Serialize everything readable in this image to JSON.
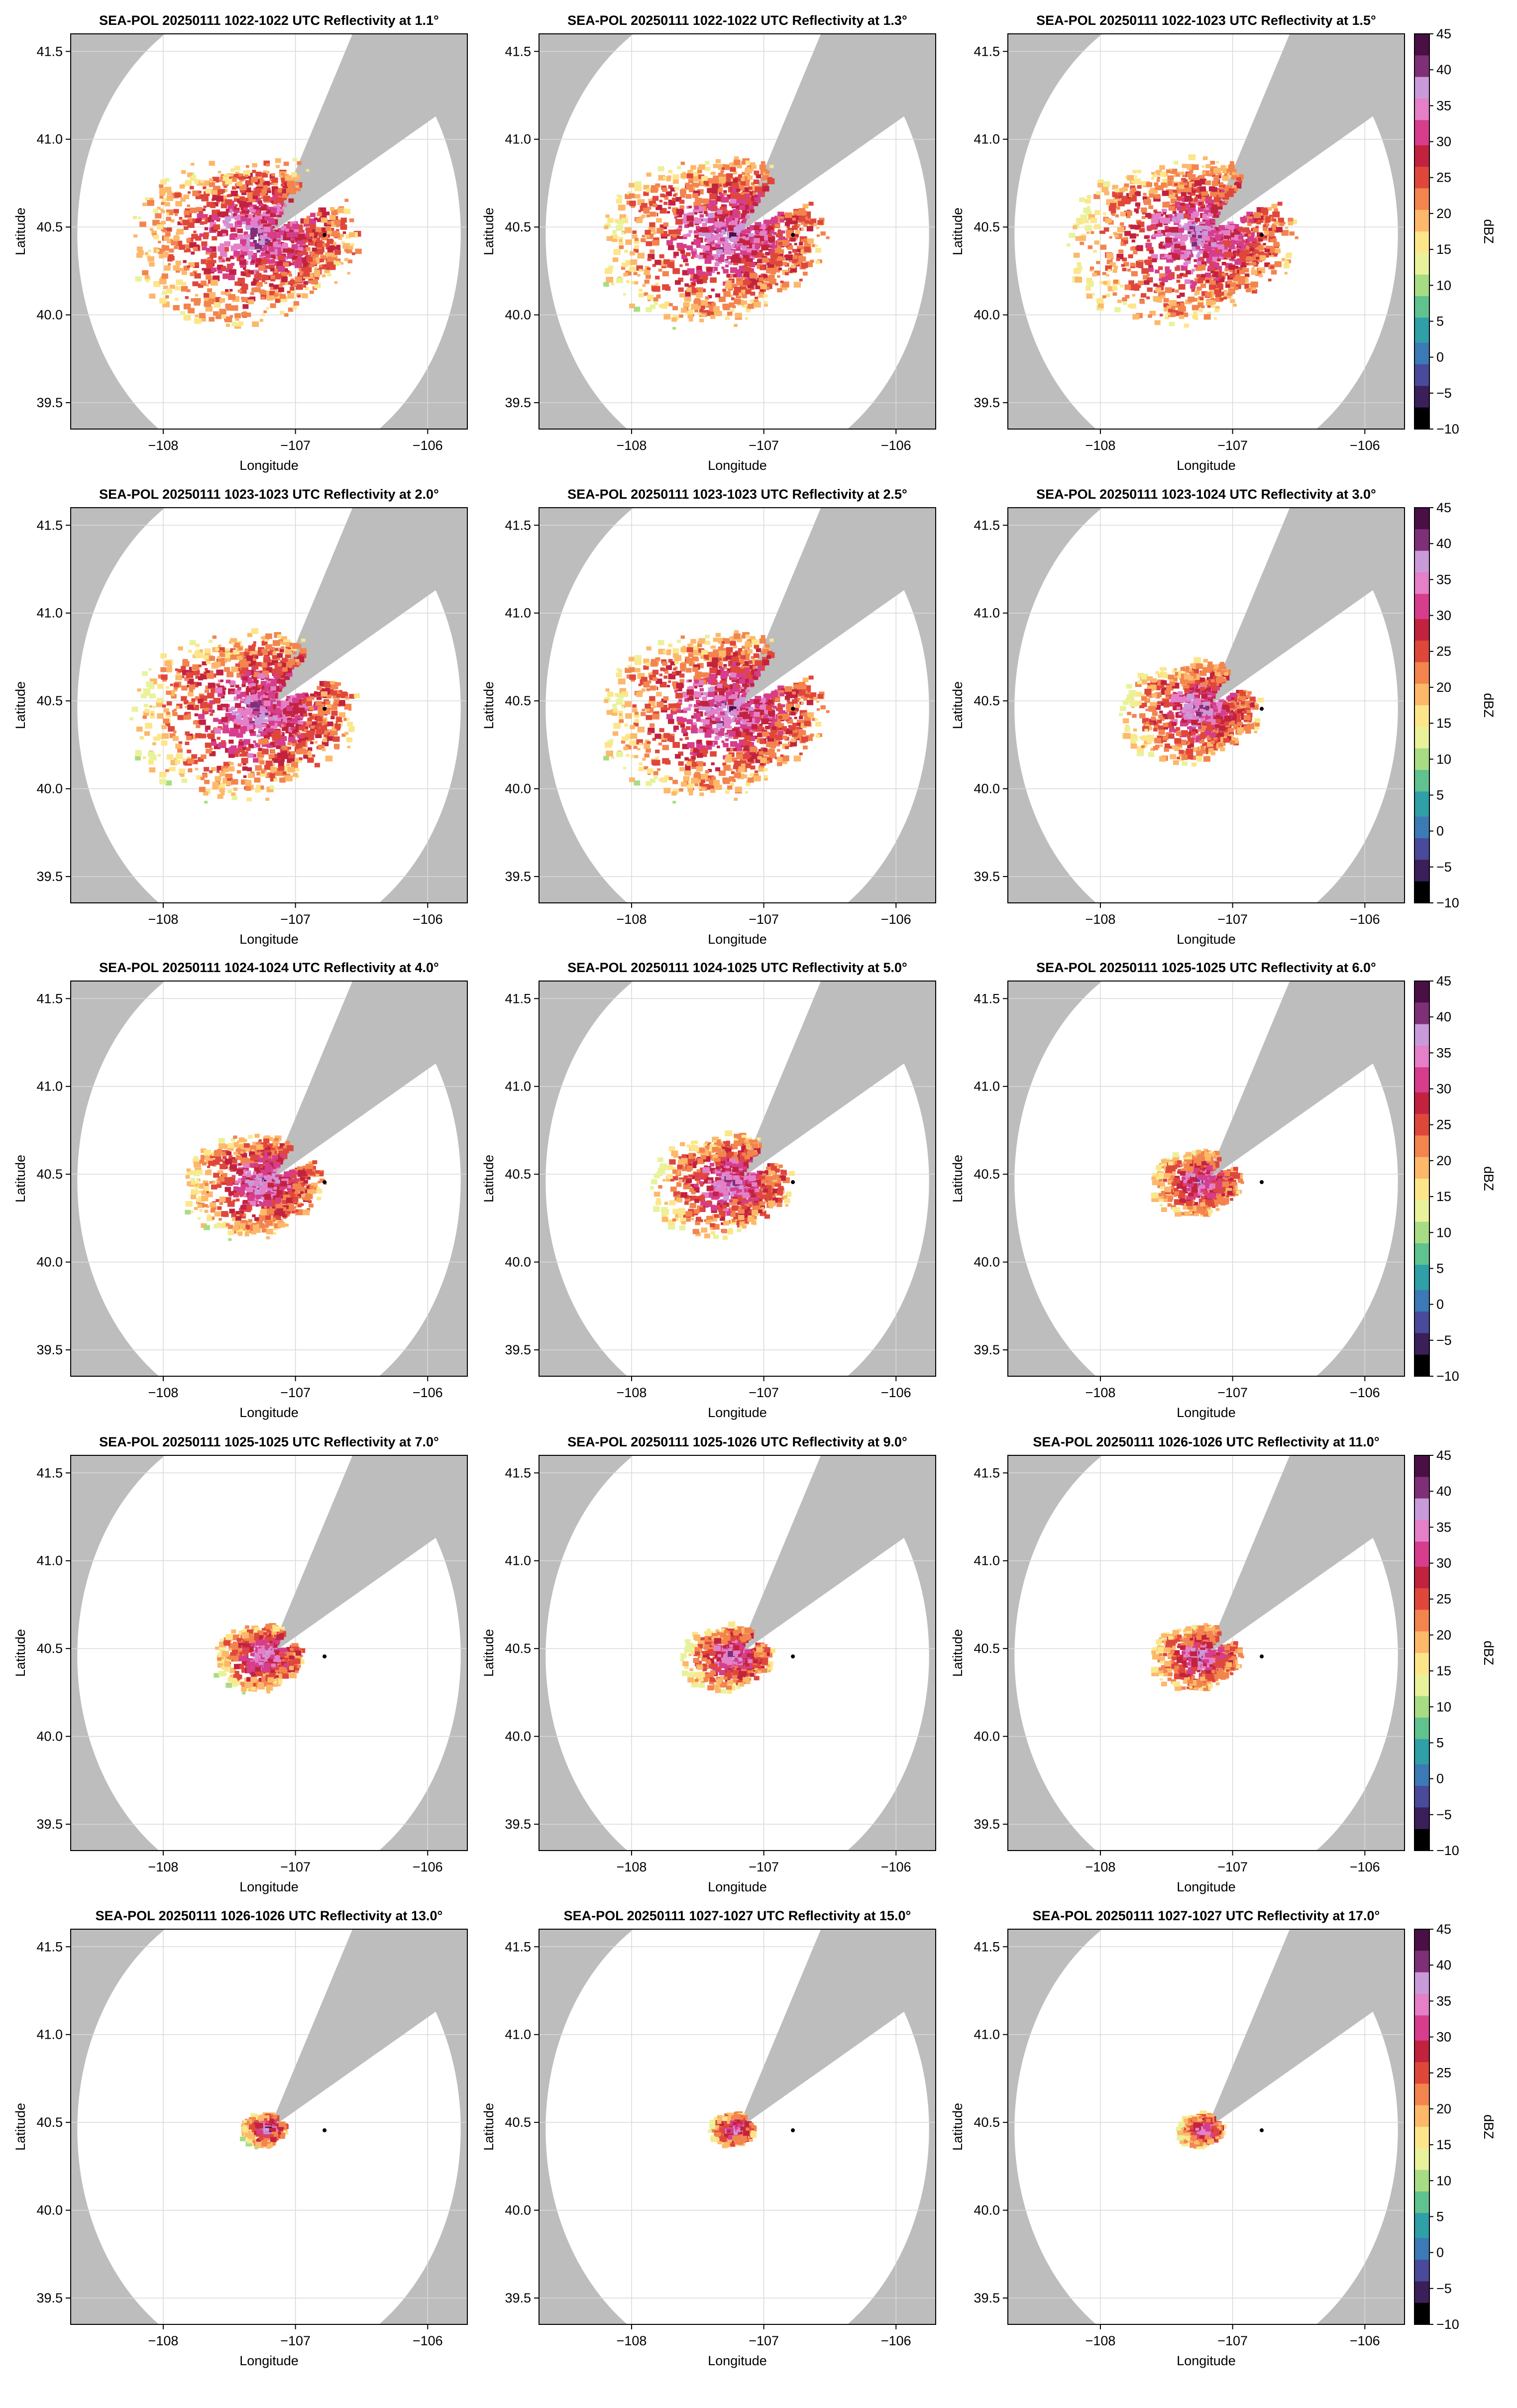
{
  "chart_data": {
    "type": "radar-ppi-grid",
    "panels": [
      {
        "title": "SEA-POL 20250111 1022-1022 UTC Reflectivity at 1.1°",
        "elevation_deg": 1.1,
        "echo_extent": "large"
      },
      {
        "title": "SEA-POL 20250111 1022-1022 UTC Reflectivity at 1.3°",
        "elevation_deg": 1.3,
        "echo_extent": "large"
      },
      {
        "title": "SEA-POL 20250111 1022-1023 UTC Reflectivity at 1.5°",
        "elevation_deg": 1.5,
        "echo_extent": "large"
      },
      {
        "title": "SEA-POL 20250111 1023-1023 UTC Reflectivity at 2.0°",
        "elevation_deg": 2.0,
        "echo_extent": "large"
      },
      {
        "title": "SEA-POL 20250111 1023-1023 UTC Reflectivity at 2.5°",
        "elevation_deg": 2.5,
        "echo_extent": "large"
      },
      {
        "title": "SEA-POL 20250111 1023-1024 UTC Reflectivity at 3.0°",
        "elevation_deg": 3.0,
        "echo_extent": "medium"
      },
      {
        "title": "SEA-POL 20250111 1024-1024 UTC Reflectivity at 4.0°",
        "elevation_deg": 4.0,
        "echo_extent": "medium"
      },
      {
        "title": "SEA-POL 20250111 1024-1025 UTC Reflectivity at 5.0°",
        "elevation_deg": 5.0,
        "echo_extent": "medium"
      },
      {
        "title": "SEA-POL 20250111 1025-1025 UTC Reflectivity at 6.0°",
        "elevation_deg": 6.0,
        "echo_extent": "small"
      },
      {
        "title": "SEA-POL 20250111 1025-1025 UTC Reflectivity at 7.0°",
        "elevation_deg": 7.0,
        "echo_extent": "small"
      },
      {
        "title": "SEA-POL 20250111 1025-1026 UTC Reflectivity at 9.0°",
        "elevation_deg": 9.0,
        "echo_extent": "small"
      },
      {
        "title": "SEA-POL 20250111 1026-1026 UTC Reflectivity at 11.0°",
        "elevation_deg": 11.0,
        "echo_extent": "small"
      },
      {
        "title": "SEA-POL 20250111 1026-1026 UTC Reflectivity at 13.0°",
        "elevation_deg": 13.0,
        "echo_extent": "tiny"
      },
      {
        "title": "SEA-POL 20250111 1027-1027 UTC Reflectivity at 15.0°",
        "elevation_deg": 15.0,
        "echo_extent": "tiny"
      },
      {
        "title": "SEA-POL 20250111 1027-1027 UTC Reflectivity at 17.0°",
        "elevation_deg": 17.0,
        "echo_extent": "tiny"
      }
    ],
    "xlabel": "Longitude",
    "ylabel": "Latitude",
    "xlim": [
      -108.7,
      -105.7
    ],
    "ylim": [
      39.35,
      41.6
    ],
    "xticks": [
      -108,
      -107,
      -106
    ],
    "xtick_labels": [
      "−108",
      "−107",
      "−106"
    ],
    "yticks": [
      39.5,
      40.0,
      40.5,
      41.0,
      41.5
    ],
    "ytick_labels": [
      "39.5",
      "40.0",
      "40.5",
      "41.0",
      "41.5"
    ],
    "radar_center": {
      "lon": -107.2,
      "lat": 40.46,
      "max_range_deg": 1.45
    },
    "blocked_sector_deg": [
      29,
      62
    ],
    "marker_point": {
      "lon": -106.78,
      "lat": 40.455
    },
    "grid": true,
    "colorbar": {
      "label": "dBZ",
      "min": -10,
      "max": 45,
      "ticks": [
        45,
        40,
        35,
        30,
        25,
        20,
        15,
        10,
        5,
        0,
        -5,
        -10
      ],
      "tick_labels": [
        "45",
        "40",
        "35",
        "30",
        "25",
        "20",
        "15",
        "10",
        "5",
        "0",
        "−5",
        "−10"
      ],
      "colors": [
        "#000000",
        "#3b1f5a",
        "#4a4a9a",
        "#3c7ab5",
        "#2f9fa8",
        "#5fc28f",
        "#a8dc84",
        "#e9f29a",
        "#fde68a",
        "#fdb86a",
        "#f3844e",
        "#e0473b",
        "#c3223f",
        "#d63d8d",
        "#e47fc8",
        "#c99ad9",
        "#7f2f78",
        "#4a1046"
      ]
    }
  },
  "colors": {
    "background": "#ffffff",
    "blocked_region": "#bdbdbd",
    "axis": "#000000",
    "gridline": "#d9d9d9"
  }
}
